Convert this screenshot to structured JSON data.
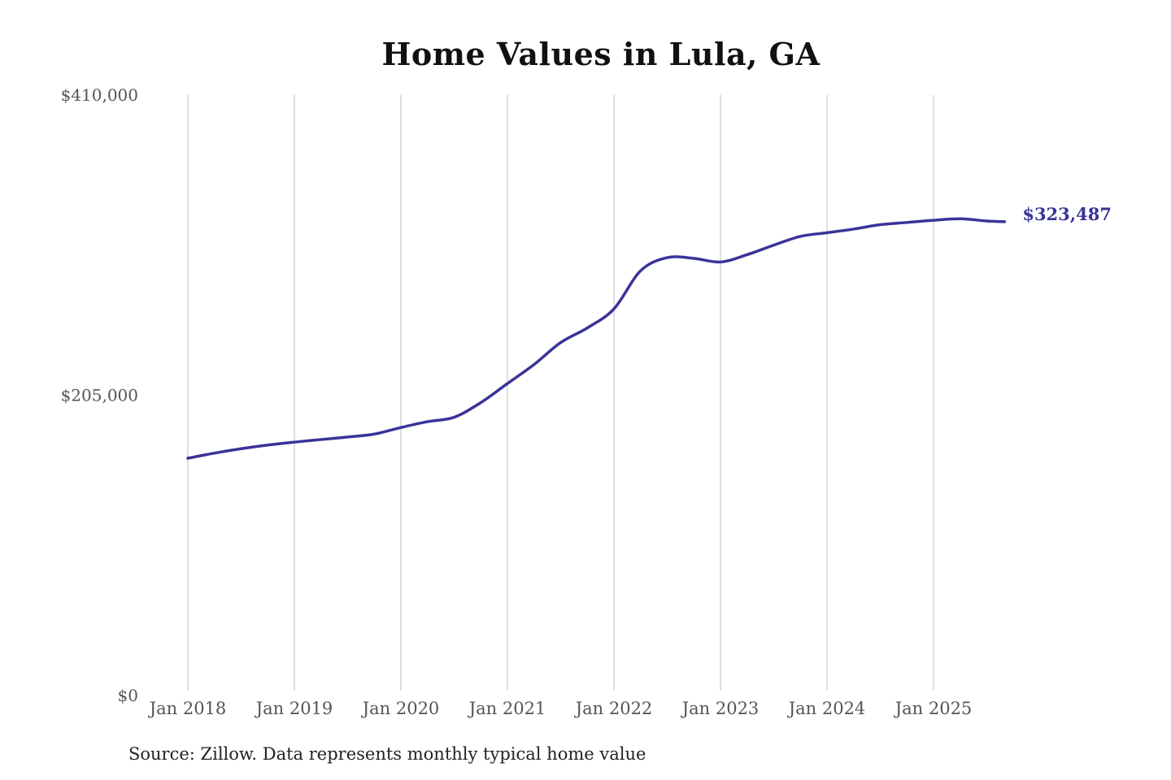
{
  "chart_data": {
    "type": "line",
    "title": "Home Values in Lula, GA",
    "xlabel": "",
    "ylabel": "",
    "source": "Source: Zillow. Data represents monthly typical home value",
    "y_ticks": [
      {
        "value": 0,
        "label": "$0"
      },
      {
        "value": 205000,
        "label": "$205,000"
      },
      {
        "value": 410000,
        "label": "$410,000"
      }
    ],
    "ylim": [
      0,
      410000
    ],
    "x_ticks": [
      {
        "value": "2018-01",
        "label": "Jan 2018"
      },
      {
        "value": "2019-01",
        "label": "Jan 2019"
      },
      {
        "value": "2020-01",
        "label": "Jan 2020"
      },
      {
        "value": "2021-01",
        "label": "Jan 2021"
      },
      {
        "value": "2022-01",
        "label": "Jan 2022"
      },
      {
        "value": "2023-01",
        "label": "Jan 2023"
      },
      {
        "value": "2024-01",
        "label": "Jan 2024"
      },
      {
        "value": "2025-01",
        "label": "Jan 2025"
      }
    ],
    "xlim": [
      "2018-01",
      "2025-10"
    ],
    "grid": "vertical",
    "line_color": "#3a3399",
    "end_label": "$323,487",
    "series": [
      {
        "points": [
          {
            "x": "2018-01",
            "y": 162000
          },
          {
            "x": "2018-04",
            "y": 165500
          },
          {
            "x": "2018-07",
            "y": 168500
          },
          {
            "x": "2018-10",
            "y": 171000
          },
          {
            "x": "2019-01",
            "y": 173000
          },
          {
            "x": "2019-04",
            "y": 174800
          },
          {
            "x": "2019-07",
            "y": 176500
          },
          {
            "x": "2019-10",
            "y": 178500
          },
          {
            "x": "2020-01",
            "y": 183000
          },
          {
            "x": "2020-04",
            "y": 187000
          },
          {
            "x": "2020-07",
            "y": 190000
          },
          {
            "x": "2020-10",
            "y": 200000
          },
          {
            "x": "2021-01",
            "y": 213000
          },
          {
            "x": "2021-04",
            "y": 226000
          },
          {
            "x": "2021-07",
            "y": 241000
          },
          {
            "x": "2021-10",
            "y": 251000
          },
          {
            "x": "2022-01",
            "y": 264000
          },
          {
            "x": "2022-04",
            "y": 290000
          },
          {
            "x": "2022-07",
            "y": 299000
          },
          {
            "x": "2022-10",
            "y": 298500
          },
          {
            "x": "2023-01",
            "y": 296000
          },
          {
            "x": "2023-04",
            "y": 301000
          },
          {
            "x": "2023-07",
            "y": 307500
          },
          {
            "x": "2023-10",
            "y": 313500
          },
          {
            "x": "2024-01",
            "y": 316000
          },
          {
            "x": "2024-04",
            "y": 318500
          },
          {
            "x": "2024-07",
            "y": 321500
          },
          {
            "x": "2024-10",
            "y": 323000
          },
          {
            "x": "2025-01",
            "y": 324500
          },
          {
            "x": "2025-04",
            "y": 325500
          },
          {
            "x": "2025-07",
            "y": 324000
          },
          {
            "x": "2025-09",
            "y": 323487
          }
        ]
      }
    ]
  }
}
